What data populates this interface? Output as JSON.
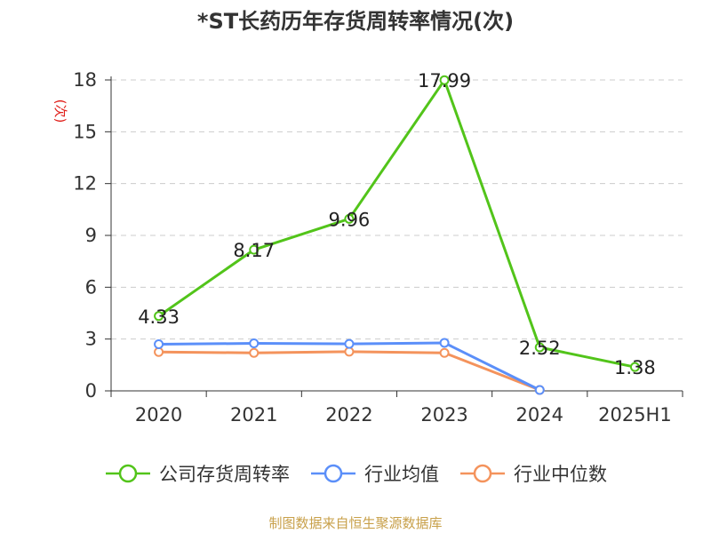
{
  "title": "*ST长药历年存货周转率情况(次)",
  "source": "制图数据来自恒生聚源数据库",
  "chart_data": {
    "type": "line",
    "title": "*ST长药历年存货周转率情况(次)",
    "ylabel": "(次)",
    "xlabel": "",
    "categories": [
      "2020",
      "2021",
      "2022",
      "2023",
      "2024",
      "2025H1"
    ],
    "ylim": [
      0,
      18
    ],
    "yticks": [
      0,
      3,
      6,
      9,
      12,
      15,
      18
    ],
    "grid": true,
    "legend_position": "bottom",
    "series": [
      {
        "name": "公司存货周转率",
        "color": "#52c41a",
        "show_labels": true,
        "values": [
          4.33,
          8.17,
          9.96,
          17.99,
          2.52,
          1.38
        ]
      },
      {
        "name": "行业均值",
        "color": "#5b8ff9",
        "show_labels": false,
        "values": [
          2.7,
          2.75,
          2.72,
          2.78,
          0.05,
          null
        ]
      },
      {
        "name": "行业中位数",
        "color": "#f4935c",
        "show_labels": false,
        "values": [
          2.25,
          2.2,
          2.27,
          2.2,
          0.05,
          null
        ]
      }
    ],
    "data_labels": [
      "4.33",
      "8.17",
      "9.96",
      "17.99",
      "2.52",
      "1.38"
    ]
  }
}
